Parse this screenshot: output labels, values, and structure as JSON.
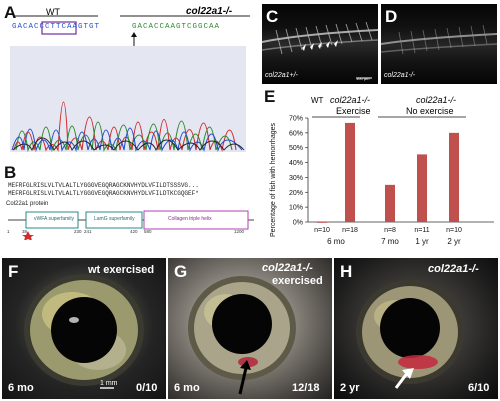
{
  "panels": {
    "A": {
      "letter": "A",
      "wt_label": "WT",
      "mut_label": "col22a1-/-",
      "seq_wt": "GACACCCTTCAAGTGT",
      "seq_mut": "GACACCAAGTCGGCAA",
      "boxed_codon": "CTTC"
    },
    "B": {
      "letter": "B",
      "protein_label": "Col22a1 protein",
      "seq_line1": "MEFRFGLRISLVLTVLALTLYGGGVEGQRAGCKNVHYDLVFILDTSSSVG...",
      "seq_line2": "MEFRFGLRISLVLTVLALTLYGGGVEGQRAGCKNVHYDLVFILDTKCGQGEF*",
      "domains": [
        "vWFA superfamily",
        "LamG superfamily",
        "Collagen triple helix"
      ],
      "positions": [
        "1",
        "38",
        "230",
        "241",
        "420",
        "580",
        "1200"
      ]
    },
    "C": {
      "letter": "C",
      "label": "col22a1+/-",
      "scale": "100 µm"
    },
    "D": {
      "letter": "D",
      "label": "col22a1-/-"
    },
    "E": {
      "letter": "E",
      "group1_wt": "WT",
      "group1_mut": "col22a1-/-",
      "group1_title": "Exercise",
      "group2_mut": "col22a1-/-",
      "group2_title": "No exercise"
    },
    "F": {
      "letter": "F",
      "title": "wt exercised",
      "age": "6 mo",
      "count": "0/10",
      "scale": "1 mm"
    },
    "G": {
      "letter": "G",
      "title1": "col22a1-/-",
      "title2": "exercised",
      "age": "6 mo",
      "count": "12/18"
    },
    "H": {
      "letter": "H",
      "title": "col22a1-/-",
      "age": "2 yr",
      "count": "6/10"
    }
  },
  "chart_data": {
    "type": "bar",
    "ylabel": "Percentage of fish with hemorrhages",
    "ylim": [
      0,
      70
    ],
    "yticks": [
      "0%",
      "10%",
      "20%",
      "30%",
      "40%",
      "50%",
      "60%",
      "70%"
    ],
    "bars": [
      {
        "n": "n=10",
        "value": 0
      },
      {
        "n": "n=18",
        "value": 66.7
      },
      {
        "n": "n=8",
        "value": 25
      },
      {
        "n": "n=11",
        "value": 45.5
      },
      {
        "n": "n=10",
        "value": 60
      }
    ],
    "age_labels": [
      "6 mo",
      "7 mo",
      "1 yr",
      "2 yr"
    ],
    "bar_color": "#c0504d"
  },
  "colors": {
    "bar": "#c0504d",
    "axis": "#333333"
  }
}
